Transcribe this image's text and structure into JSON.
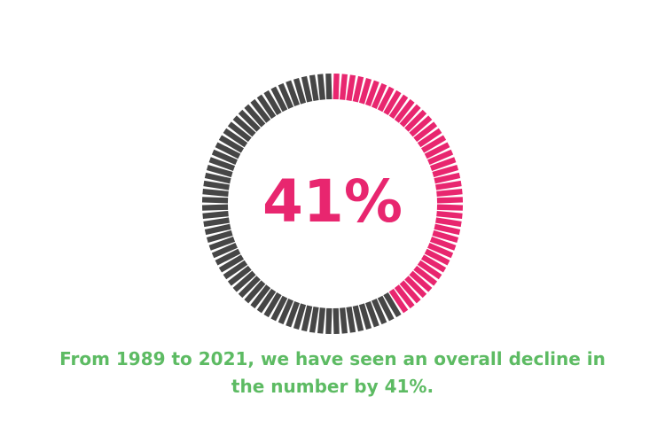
{
  "chart_data": {
    "type": "gauge",
    "values": [
      41
    ],
    "value_labels": [
      "41%"
    ],
    "ylim": [
      0,
      100
    ],
    "color": "#e8266f",
    "track_color": "#464646",
    "caption": "From 1989 to 2021, we have seen an overall decline in the number by 41%."
  }
}
